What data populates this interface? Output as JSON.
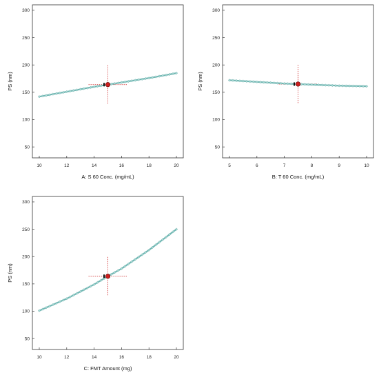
{
  "chart_data": [
    {
      "type": "line",
      "xlabel": "A: S 60 Conc. (mg/mL)",
      "ylabel": "PS (nm)",
      "xlim": [
        10,
        20
      ],
      "ylim": [
        30,
        310
      ],
      "xticks": [
        10,
        12,
        14,
        16,
        18,
        20
      ],
      "yticks": [
        50,
        100,
        150,
        200,
        250,
        300
      ],
      "series": [
        {
          "x": [
            10,
            12,
            14,
            15,
            16,
            18,
            20
          ],
          "y": [
            142,
            151,
            160,
            164,
            168,
            176,
            185
          ]
        }
      ],
      "design_point": {
        "x": 15,
        "y": 164
      },
      "reference_lines": {
        "x": 15,
        "y": 164
      },
      "marker_color": "#6fb8b4",
      "point_color": "#cc1f1f"
    },
    {
      "type": "line",
      "xlabel": "B: T 60 Conc. (mg/mL)",
      "ylabel": "PS (nm)",
      "xlim": [
        5,
        10
      ],
      "ylim": [
        30,
        310
      ],
      "xticks": [
        5,
        6,
        7,
        8,
        9,
        10
      ],
      "yticks": [
        50,
        100,
        150,
        200,
        250,
        300
      ],
      "series": [
        {
          "x": [
            5,
            6,
            7,
            7.5,
            8,
            9,
            10
          ],
          "y": [
            172,
            169,
            166,
            165,
            164,
            162,
            161
          ]
        }
      ],
      "design_point": {
        "x": 7.5,
        "y": 165
      },
      "reference_lines": {
        "x": 7.5,
        "y": 165
      },
      "marker_color": "#6fb8b4",
      "point_color": "#cc1f1f"
    },
    {
      "type": "line",
      "xlabel": "C: FMT Amount (mg)",
      "ylabel": "PS (nm)",
      "xlim": [
        10,
        20
      ],
      "ylim": [
        30,
        310
      ],
      "xticks": [
        10,
        12,
        14,
        16,
        18,
        20
      ],
      "yticks": [
        50,
        100,
        150,
        200,
        250,
        300
      ],
      "series": [
        {
          "x": [
            10,
            12,
            14,
            15,
            16,
            18,
            20
          ],
          "y": [
            101,
            123,
            149,
            164,
            178,
            212,
            250
          ]
        }
      ],
      "design_point": {
        "x": 15,
        "y": 164
      },
      "reference_lines": {
        "x": 15,
        "y": 164
      },
      "marker_color": "#6fb8b4",
      "point_color": "#cc1f1f"
    }
  ]
}
